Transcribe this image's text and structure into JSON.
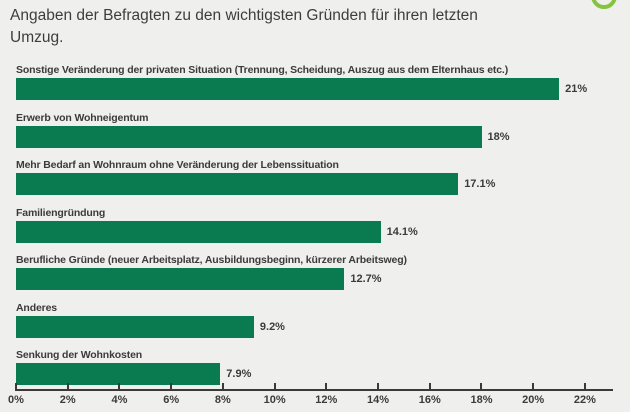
{
  "header": {
    "title": "Angaben der Befragten zu den wichtigsten Gründen für ihren letzten Umzug.",
    "title_line1": "Angaben der Befragten zu den wichtigsten Gründen für ihren letzten",
    "title_line2": "Umzug."
  },
  "logo": {
    "icon": "green-ring-logo"
  },
  "chart_data": {
    "type": "bar",
    "orientation": "horizontal",
    "title": "Angaben der Befragten zu den wichtigsten Gründen für ihren letzten Umzug.",
    "categories": [
      "Sonstige Veränderung der privaten Situation (Trennung, Scheidung, Auszug aus dem Elternhaus etc.)",
      "Erwerb von Wohneigentum",
      "Mehr Bedarf an Wohnraum ohne Veränderung der Lebenssituation",
      "Familiengründung",
      "Berufliche Gründe (neuer Arbeitsplatz, Ausbildungsbeginn, kürzerer Arbeitsweg)",
      "Anderes",
      "Senkung der Wohnkosten"
    ],
    "values": [
      21,
      18,
      17.1,
      14.1,
      12.7,
      9.2,
      7.9
    ],
    "value_labels": [
      "21%",
      "18%",
      "17.1%",
      "14.1%",
      "12.7%",
      "9.2%",
      "7.9%"
    ],
    "xlabel": "",
    "ylabel": "",
    "xlim": [
      0,
      22
    ],
    "x_ticks": [
      0,
      2,
      4,
      6,
      8,
      10,
      12,
      14,
      16,
      18,
      20,
      22
    ],
    "x_tick_labels": [
      "0%",
      "2%",
      "4%",
      "6%",
      "8%",
      "10%",
      "12%",
      "14%",
      "16%",
      "18%",
      "20%",
      "22%"
    ],
    "bar_color": "#0a7b50",
    "grid": false,
    "legend_position": "none"
  }
}
